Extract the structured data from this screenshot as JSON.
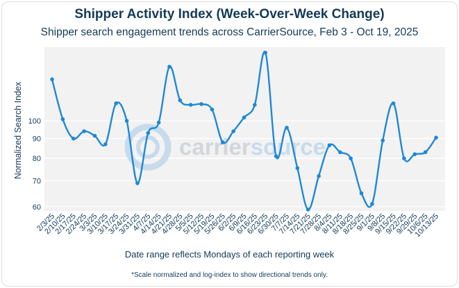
{
  "chart_data": {
    "type": "line",
    "title": "Shipper Activity Index (Week-Over-Week Change)",
    "subtitle": "Shipper search engagement trends across CarrierSource, Feb 3 - Oct 19, 2025",
    "xlabel": "Date range reflects Mondays of each reporting week",
    "ylabel": "Normalized Search Index",
    "footnote": "*Scale normalized and log-index to show directional trends only.",
    "watermark": "carriersource",
    "y_scale": "log",
    "ylim": [
      58.5,
      155
    ],
    "yticks": [
      60,
      70,
      80,
      90,
      100
    ],
    "grid": true,
    "line_color": "#1e88d6",
    "series": [
      {
        "x": [
          "2/3/25",
          "2/10/25",
          "2/17/25",
          "2/24/25",
          "3/3/25",
          "3/10/25",
          "3/17/25",
          "3/24/25",
          "3/31/25",
          "4/7/25",
          "4/14/25",
          "4/21/25",
          "4/28/25",
          "5/5/25",
          "5/12/25",
          "5/19/25",
          "5/26/25",
          "6/2/25",
          "6/9/25",
          "6/16/25",
          "6/23/25",
          "6/30/25",
          "7/7/25",
          "7/14/25",
          "7/21/25",
          "7/28/25",
          "8/4/25",
          "8/11/25",
          "8/18/25",
          "8/25/25",
          "9/1/25",
          "9/8/25",
          "9/15/25",
          "9/22/25",
          "9/29/25",
          "10/6/25",
          "10/13/25"
        ],
        "values": [
          128,
          101,
          90,
          94,
          91.5,
          87,
          111,
          100,
          69,
          93,
          99,
          138,
          113,
          110,
          110.5,
          107,
          88,
          94,
          102,
          110,
          150,
          81,
          96,
          75.5,
          59,
          72,
          86.5,
          83,
          80,
          65,
          61,
          89,
          111,
          80,
          82,
          83,
          90.5
        ]
      }
    ]
  }
}
